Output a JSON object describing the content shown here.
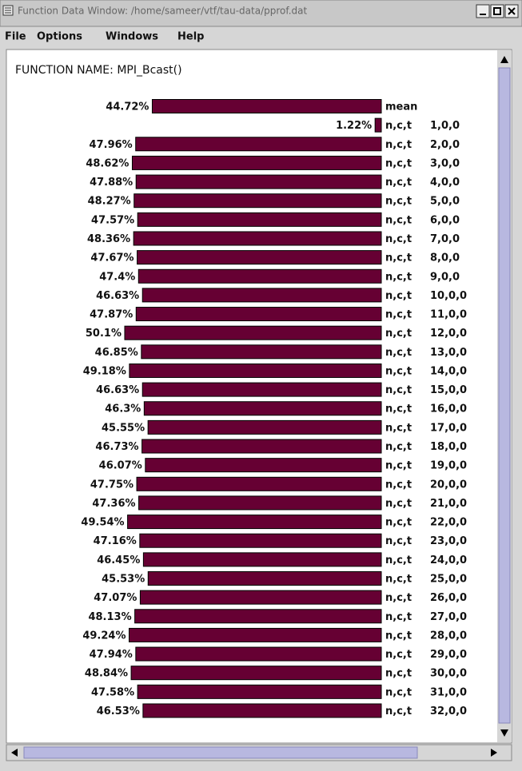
{
  "window": {
    "title": "Function Data Window: /home/sameer/vtf/tau-data/pprof.dat"
  },
  "menu": [
    "File",
    "Options",
    "Windows",
    "Help"
  ],
  "chart_data": {
    "type": "bar",
    "title": "FUNCTION NAME: MPI_Bcast()",
    "color": "#660033",
    "values": [
      44.72,
      1.22,
      47.96,
      48.62,
      47.88,
      48.27,
      47.57,
      48.36,
      47.67,
      47.4,
      46.63,
      47.87,
      50.1,
      46.85,
      49.18,
      46.63,
      46.3,
      45.55,
      46.73,
      46.07,
      47.75,
      47.36,
      49.54,
      47.16,
      46.45,
      45.53,
      47.07,
      48.13,
      49.24,
      47.94,
      48.84,
      47.58,
      46.53
    ],
    "value_labels": [
      "44.72%",
      "1.22%",
      "47.96%",
      "48.62%",
      "47.88%",
      "48.27%",
      "47.57%",
      "48.36%",
      "47.67%",
      "47.4%",
      "46.63%",
      "47.87%",
      "50.1%",
      "46.85%",
      "49.18%",
      "46.63%",
      "46.3%",
      "45.55%",
      "46.73%",
      "46.07%",
      "47.75%",
      "47.36%",
      "49.54%",
      "47.16%",
      "46.45%",
      "45.53%",
      "47.07%",
      "48.13%",
      "49.24%",
      "47.94%",
      "48.84%",
      "47.58%",
      "46.53%"
    ],
    "categories": [
      "mean",
      "n,c,t",
      "n,c,t",
      "n,c,t",
      "n,c,t",
      "n,c,t",
      "n,c,t",
      "n,c,t",
      "n,c,t",
      "n,c,t",
      "n,c,t",
      "n,c,t",
      "n,c,t",
      "n,c,t",
      "n,c,t",
      "n,c,t",
      "n,c,t",
      "n,c,t",
      "n,c,t",
      "n,c,t",
      "n,c,t",
      "n,c,t",
      "n,c,t",
      "n,c,t",
      "n,c,t",
      "n,c,t",
      "n,c,t",
      "n,c,t",
      "n,c,t",
      "n,c,t",
      "n,c,t",
      "n,c,t",
      "n,c,t"
    ],
    "threads": [
      null,
      "1,0,0",
      "2,0,0",
      "3,0,0",
      "4,0,0",
      "5,0,0",
      "6,0,0",
      "7,0,0",
      "8,0,0",
      "9,0,0",
      "10,0,0",
      "11,0,0",
      "12,0,0",
      "13,0,0",
      "14,0,0",
      "15,0,0",
      "16,0,0",
      "17,0,0",
      "18,0,0",
      "19,0,0",
      "20,0,0",
      "21,0,0",
      "22,0,0",
      "23,0,0",
      "24,0,0",
      "25,0,0",
      "26,0,0",
      "27,0,0",
      "28,0,0",
      "29,0,0",
      "30,0,0",
      "31,0,0",
      "32,0,0"
    ]
  }
}
